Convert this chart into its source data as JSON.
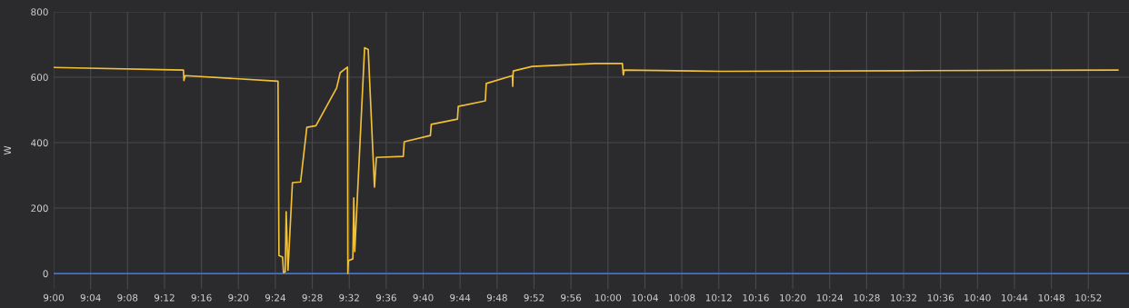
{
  "chart_data": {
    "type": "line",
    "ylabel": "W",
    "grid": true,
    "xlim": [
      9.0,
      10.94
    ],
    "ylim": [
      -47,
      800
    ],
    "yticks": [
      0,
      200,
      400,
      600,
      800
    ],
    "xticks": [
      {
        "value": 9.0,
        "label": "9:00"
      },
      {
        "value": 9.0667,
        "label": "9:04"
      },
      {
        "value": 9.1333,
        "label": "9:08"
      },
      {
        "value": 9.2,
        "label": "9:12"
      },
      {
        "value": 9.2667,
        "label": "9:16"
      },
      {
        "value": 9.3333,
        "label": "9:20"
      },
      {
        "value": 9.4,
        "label": "9:24"
      },
      {
        "value": 9.4667,
        "label": "9:28"
      },
      {
        "value": 9.5333,
        "label": "9:32"
      },
      {
        "value": 9.6,
        "label": "9:36"
      },
      {
        "value": 9.6667,
        "label": "9:40"
      },
      {
        "value": 9.7333,
        "label": "9:44"
      },
      {
        "value": 9.8,
        "label": "9:48"
      },
      {
        "value": 9.8667,
        "label": "9:52"
      },
      {
        "value": 9.9333,
        "label": "9:56"
      },
      {
        "value": 10.0,
        "label": "10:00"
      },
      {
        "value": 10.0667,
        "label": "10:04"
      },
      {
        "value": 10.1333,
        "label": "10:08"
      },
      {
        "value": 10.2,
        "label": "10:12"
      },
      {
        "value": 10.2667,
        "label": "10:16"
      },
      {
        "value": 10.3333,
        "label": "10:20"
      },
      {
        "value": 10.4,
        "label": "10:24"
      },
      {
        "value": 10.4667,
        "label": "10:28"
      },
      {
        "value": 10.5333,
        "label": "10:32"
      },
      {
        "value": 10.6,
        "label": "10:36"
      },
      {
        "value": 10.6667,
        "label": "10:40"
      },
      {
        "value": 10.7333,
        "label": "10:44"
      },
      {
        "value": 10.8,
        "label": "10:48"
      },
      {
        "value": 10.8667,
        "label": "10:52"
      }
    ],
    "series": [
      {
        "color": "#3d6fd6",
        "x": [
          9.0,
          10.94
        ],
        "values": [
          0,
          0
        ]
      },
      {
        "color": "#f2c037",
        "x": [
          9.0,
          9.2342,
          9.235,
          9.2373,
          9.4048,
          9.4065,
          9.413,
          9.4147,
          9.4178,
          9.4195,
          9.4228,
          9.4308,
          9.4455,
          9.4568,
          9.4732,
          9.5105,
          9.517,
          9.53,
          9.5308,
          9.5317,
          9.5398,
          9.5415,
          9.5432,
          9.561,
          9.5675,
          9.5788,
          9.5822,
          9.6308,
          9.6325,
          9.6797,
          9.6813,
          9.7285,
          9.73,
          9.7788,
          9.7805,
          9.8277,
          9.8282,
          9.8287,
          9.8293,
          9.8633,
          9.9772,
          10.026,
          10.0277,
          10.0293,
          10.205,
          10.53,
          10.92
        ],
        "values": [
          630,
          622,
          590,
          605,
          588,
          55,
          50,
          3,
          5,
          189,
          10,
          278,
          280,
          447,
          452,
          567,
          614,
          631,
          0,
          39,
          45,
          231,
          67,
          690,
          685,
          264,
          355,
          358,
          403,
          422,
          456,
          472,
          511,
          528,
          581,
          605,
          572,
          605,
          619,
          633,
          642,
          642,
          607,
          622,
          618,
          620,
          622
        ]
      }
    ]
  }
}
